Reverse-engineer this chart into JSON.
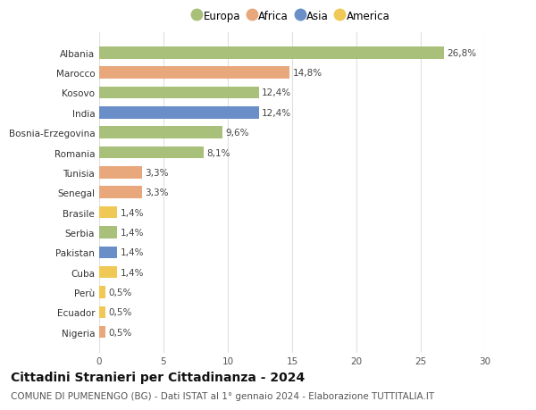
{
  "categories": [
    "Nigeria",
    "Ecuador",
    "Perù",
    "Cuba",
    "Pakistan",
    "Serbia",
    "Brasile",
    "Senegal",
    "Tunisia",
    "Romania",
    "Bosnia-Erzegovina",
    "India",
    "Kosovo",
    "Marocco",
    "Albania"
  ],
  "values": [
    0.5,
    0.5,
    0.5,
    1.4,
    1.4,
    1.4,
    1.4,
    3.3,
    3.3,
    8.1,
    9.6,
    12.4,
    12.4,
    14.8,
    26.8
  ],
  "labels": [
    "0,5%",
    "0,5%",
    "0,5%",
    "1,4%",
    "1,4%",
    "1,4%",
    "1,4%",
    "3,3%",
    "3,3%",
    "8,1%",
    "9,6%",
    "12,4%",
    "12,4%",
    "14,8%",
    "26,8%"
  ],
  "continents": [
    "Africa",
    "America",
    "America",
    "America",
    "Asia",
    "Europa",
    "America",
    "Africa",
    "Africa",
    "Europa",
    "Europa",
    "Asia",
    "Europa",
    "Africa",
    "Europa"
  ],
  "continent_colors": {
    "Europa": "#a8c07a",
    "Africa": "#e8a87c",
    "Asia": "#6a8fc8",
    "America": "#f0c855"
  },
  "legend_order": [
    "Europa",
    "Africa",
    "Asia",
    "America"
  ],
  "xlim": [
    0,
    30
  ],
  "xticks": [
    0,
    5,
    10,
    15,
    20,
    25,
    30
  ],
  "title": "Cittadini Stranieri per Cittadinanza - 2024",
  "subtitle": "COMUNE DI PUMENENGO (BG) - Dati ISTAT al 1° gennaio 2024 - Elaborazione TUTTITALIA.IT",
  "bg_color": "#ffffff",
  "grid_color": "#e0e0e0",
  "bar_height": 0.6,
  "title_fontsize": 10,
  "subtitle_fontsize": 7.5,
  "label_fontsize": 7.5,
  "ytick_fontsize": 7.5,
  "xtick_fontsize": 7.5,
  "legend_fontsize": 8.5
}
